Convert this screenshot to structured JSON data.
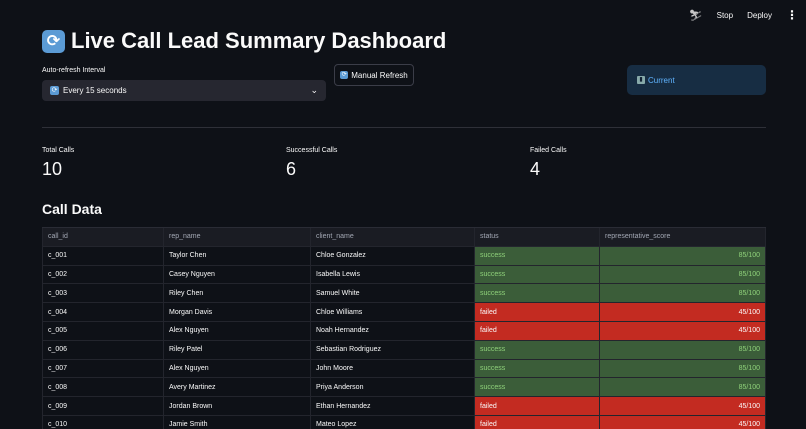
{
  "topbar": {
    "stop_label": "Stop",
    "deploy_label": "Deploy",
    "menu_icon": "⋮"
  },
  "header": {
    "title": "Live Call Lead Summary Dashboard",
    "title_icon": "refresh-icon"
  },
  "controls": {
    "interval_label": "Auto-refresh Interval",
    "interval_value": "Every 15 seconds",
    "manual_refresh_label": "Manual Refresh",
    "info_label": "Current"
  },
  "metrics": [
    {
      "label": "Total Calls",
      "value": "10"
    },
    {
      "label": "Successful Calls",
      "value": "6"
    },
    {
      "label": "Failed Calls",
      "value": "4"
    }
  ],
  "table": {
    "title": "Call Data",
    "columns": [
      "call_id",
      "rep_name",
      "client_name",
      "status",
      "representative_score"
    ],
    "rows": [
      [
        "c_001",
        "Taylor Chen",
        "Chloe Gonzalez",
        "success",
        "85/100"
      ],
      [
        "c_002",
        "Casey Nguyen",
        "Isabella Lewis",
        "success",
        "85/100"
      ],
      [
        "c_003",
        "Riley Chen",
        "Samuel White",
        "success",
        "85/100"
      ],
      [
        "c_004",
        "Morgan Davis",
        "Chloe Williams",
        "failed",
        "45/100"
      ],
      [
        "c_005",
        "Alex Nguyen",
        "Noah Hernandez",
        "failed",
        "45/100"
      ],
      [
        "c_006",
        "Riley Patel",
        "Sebastian Rodriguez",
        "success",
        "85/100"
      ],
      [
        "c_007",
        "Alex Nguyen",
        "John Moore",
        "success",
        "85/100"
      ],
      [
        "c_008",
        "Avery Martinez",
        "Priya Anderson",
        "success",
        "85/100"
      ],
      [
        "c_009",
        "Jordan Brown",
        "Ethan Hernandez",
        "failed",
        "45/100"
      ],
      [
        "c_010",
        "Jamie Smith",
        "Mateo Lopez",
        "failed",
        "45/100"
      ]
    ]
  },
  "colors": {
    "success_bg": "#3b5d39",
    "failed_bg": "#c32b21",
    "accent": "#60b4ff"
  }
}
